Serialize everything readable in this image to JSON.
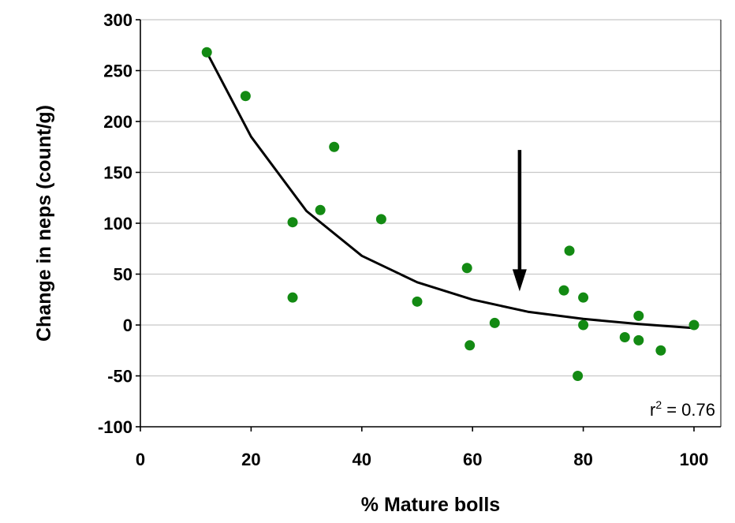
{
  "chart_data": {
    "type": "scatter",
    "title": "",
    "xlabel": "% Mature bolls",
    "ylabel": "Change in neps (count/g)",
    "xlim": [
      0,
      100
    ],
    "ylim": [
      -100,
      300
    ],
    "x_ticks": [
      0,
      20,
      40,
      60,
      80,
      100
    ],
    "y_ticks": [
      -100,
      -50,
      0,
      50,
      100,
      150,
      200,
      250,
      300
    ],
    "grid": "horizontal",
    "point_color": "#138a13",
    "series": [
      {
        "points": [
          {
            "x": 12,
            "y": 268
          },
          {
            "x": 19,
            "y": 225
          },
          {
            "x": 27.5,
            "y": 101
          },
          {
            "x": 27.5,
            "y": 27
          },
          {
            "x": 32.5,
            "y": 113
          },
          {
            "x": 35,
            "y": 175
          },
          {
            "x": 43.5,
            "y": 104
          },
          {
            "x": 50,
            "y": 23
          },
          {
            "x": 59,
            "y": 56
          },
          {
            "x": 59.5,
            "y": -20
          },
          {
            "x": 64,
            "y": 2
          },
          {
            "x": 76.5,
            "y": 34
          },
          {
            "x": 77.5,
            "y": 73
          },
          {
            "x": 79,
            "y": -50
          },
          {
            "x": 80,
            "y": 27
          },
          {
            "x": 80,
            "y": 0
          },
          {
            "x": 87.5,
            "y": -12
          },
          {
            "x": 90,
            "y": 9
          },
          {
            "x": 90,
            "y": -15
          },
          {
            "x": 94,
            "y": -25
          },
          {
            "x": 100,
            "y": 0
          }
        ]
      }
    ],
    "trendline": {
      "type": "exponential",
      "x": [
        12,
        20,
        30,
        40,
        50,
        60,
        70,
        80,
        90,
        100
      ],
      "y": [
        268,
        185,
        112,
        68,
        42,
        25,
        13,
        6,
        1,
        -3
      ]
    },
    "annotation": {
      "label_prefix": "r",
      "label_superscript": "2",
      "label_suffix": " = 0.76"
    },
    "arrow": {
      "x": 68.5,
      "y_from": 172,
      "y_to": 33
    }
  }
}
